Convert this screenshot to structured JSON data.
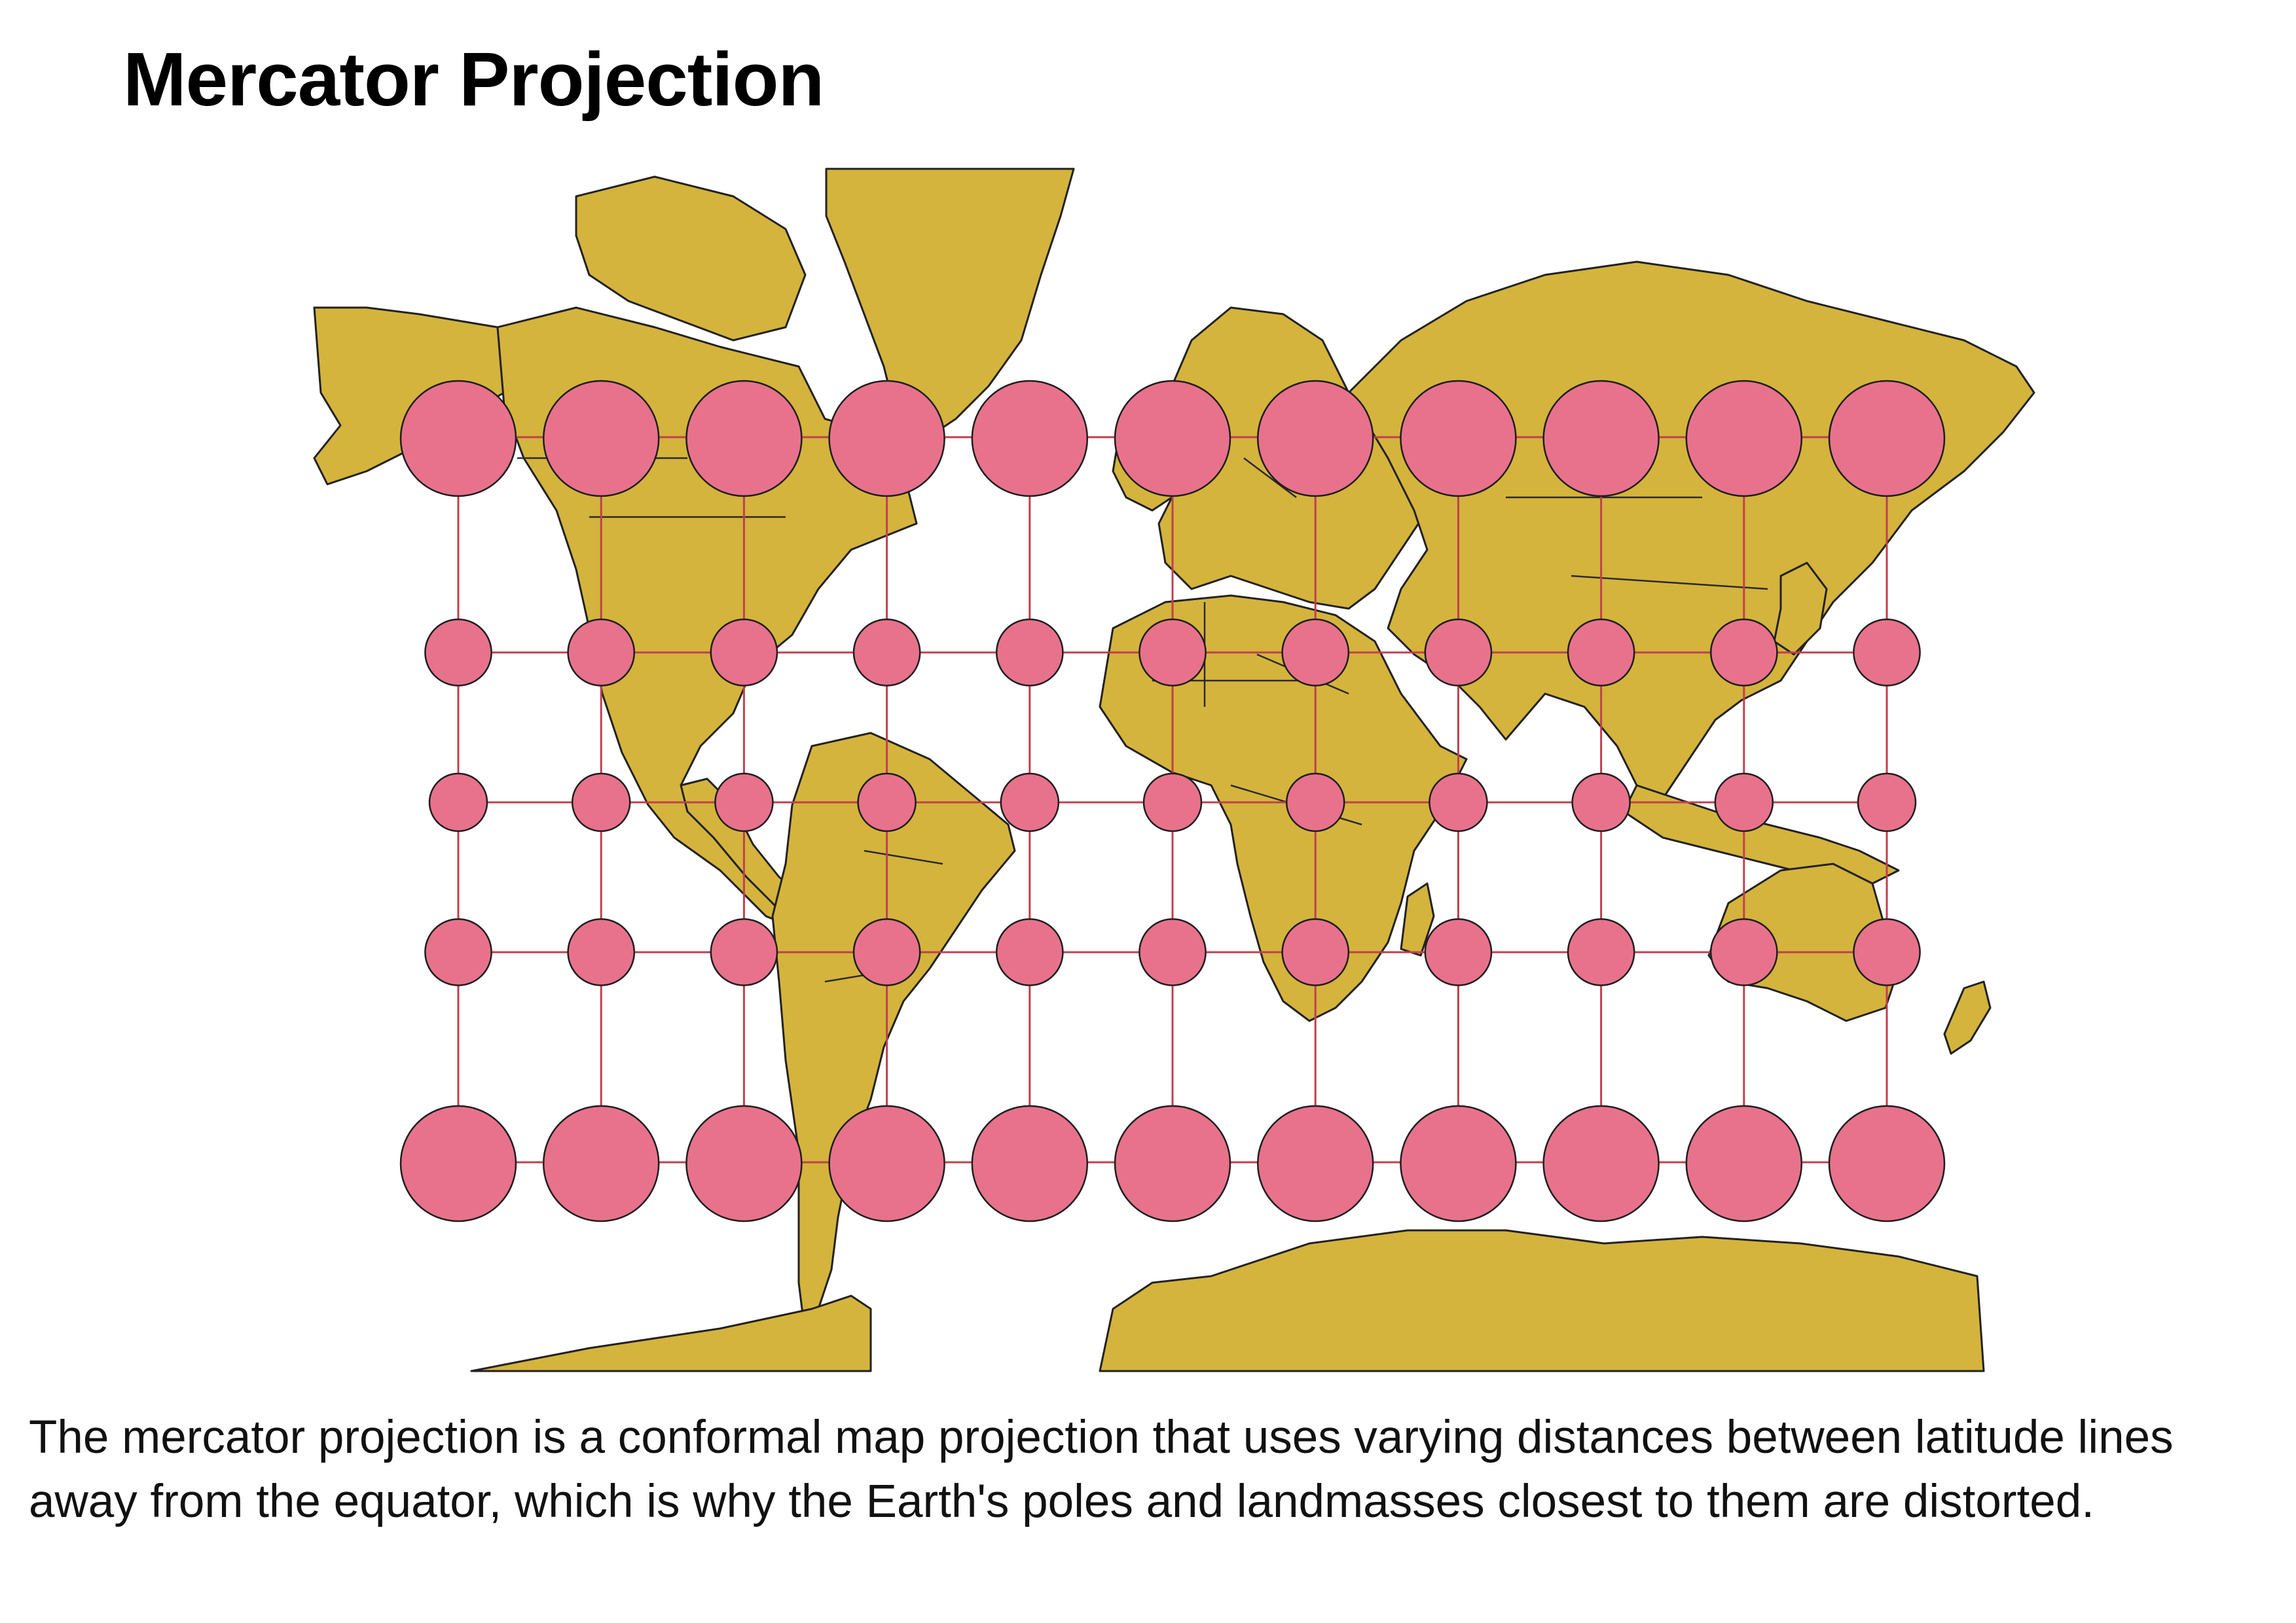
{
  "page": {
    "title": "Mercator Projection",
    "caption": "The mercator projection is a conformal map projection that uses varying distances between latitude lines away from the equator, which is why the Earth's poles and landmasses closest to them are distorted."
  },
  "map": {
    "projection": "Mercator",
    "land_color": "#d4b43c",
    "coastline_color": "#222222",
    "indicatrix_color": "#e8728c",
    "graticule_color": "#c0404f",
    "background_color": "#ffffff",
    "indicatrix": {
      "longitudes": [
        -150,
        -120,
        -90,
        -60,
        -30,
        0,
        30,
        60,
        90,
        120,
        150
      ],
      "latitudes": [
        60,
        30,
        0,
        -30,
        -60
      ],
      "relative_scale_by_latitude": [
        2.0,
        1.15,
        1.0,
        1.15,
        2.0
      ]
    }
  }
}
